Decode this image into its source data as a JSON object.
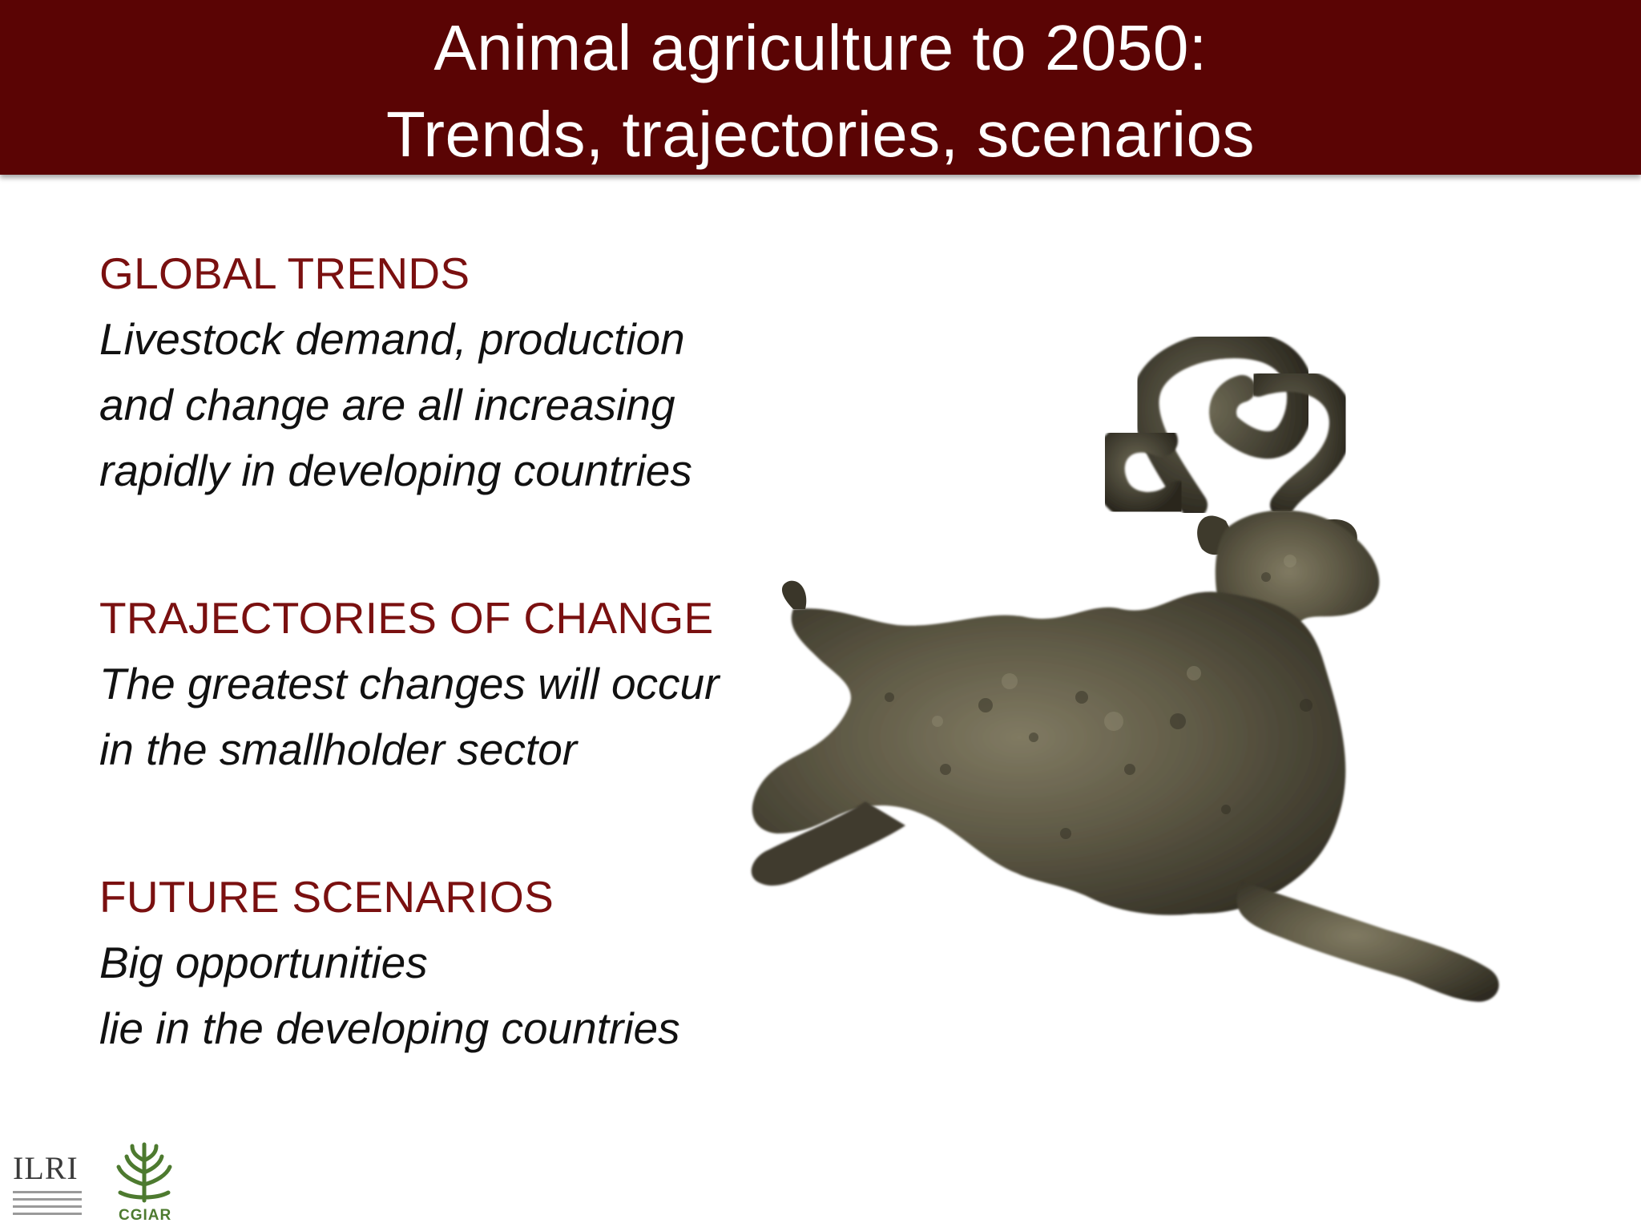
{
  "header": {
    "title_line1": "Animal agriculture to 2050:",
    "title_line2": "Trends, trajectories, scenarios"
  },
  "sections": [
    {
      "heading": "GLOBAL TRENDS",
      "lines": [
        "Livestock demand, production",
        "and change are all increasing",
        "rapidly in developing countries"
      ]
    },
    {
      "heading": "TRAJECTORIES OF CHANGE",
      "lines": [
        "The greatest changes will occur",
        "in the smallholder sector"
      ]
    },
    {
      "heading": "FUTURE SCENARIOS",
      "lines": [
        "Big opportunities",
        "lie in the developing countries"
      ]
    }
  ],
  "figure": {
    "icon": "bronze-goat-figurine-image"
  },
  "logos": {
    "ilri": "ILRI",
    "cgiar": "CGIAR"
  },
  "colors": {
    "header_bg": "#5a0404",
    "heading_text": "#7a1010",
    "bronze": "#55503f"
  }
}
